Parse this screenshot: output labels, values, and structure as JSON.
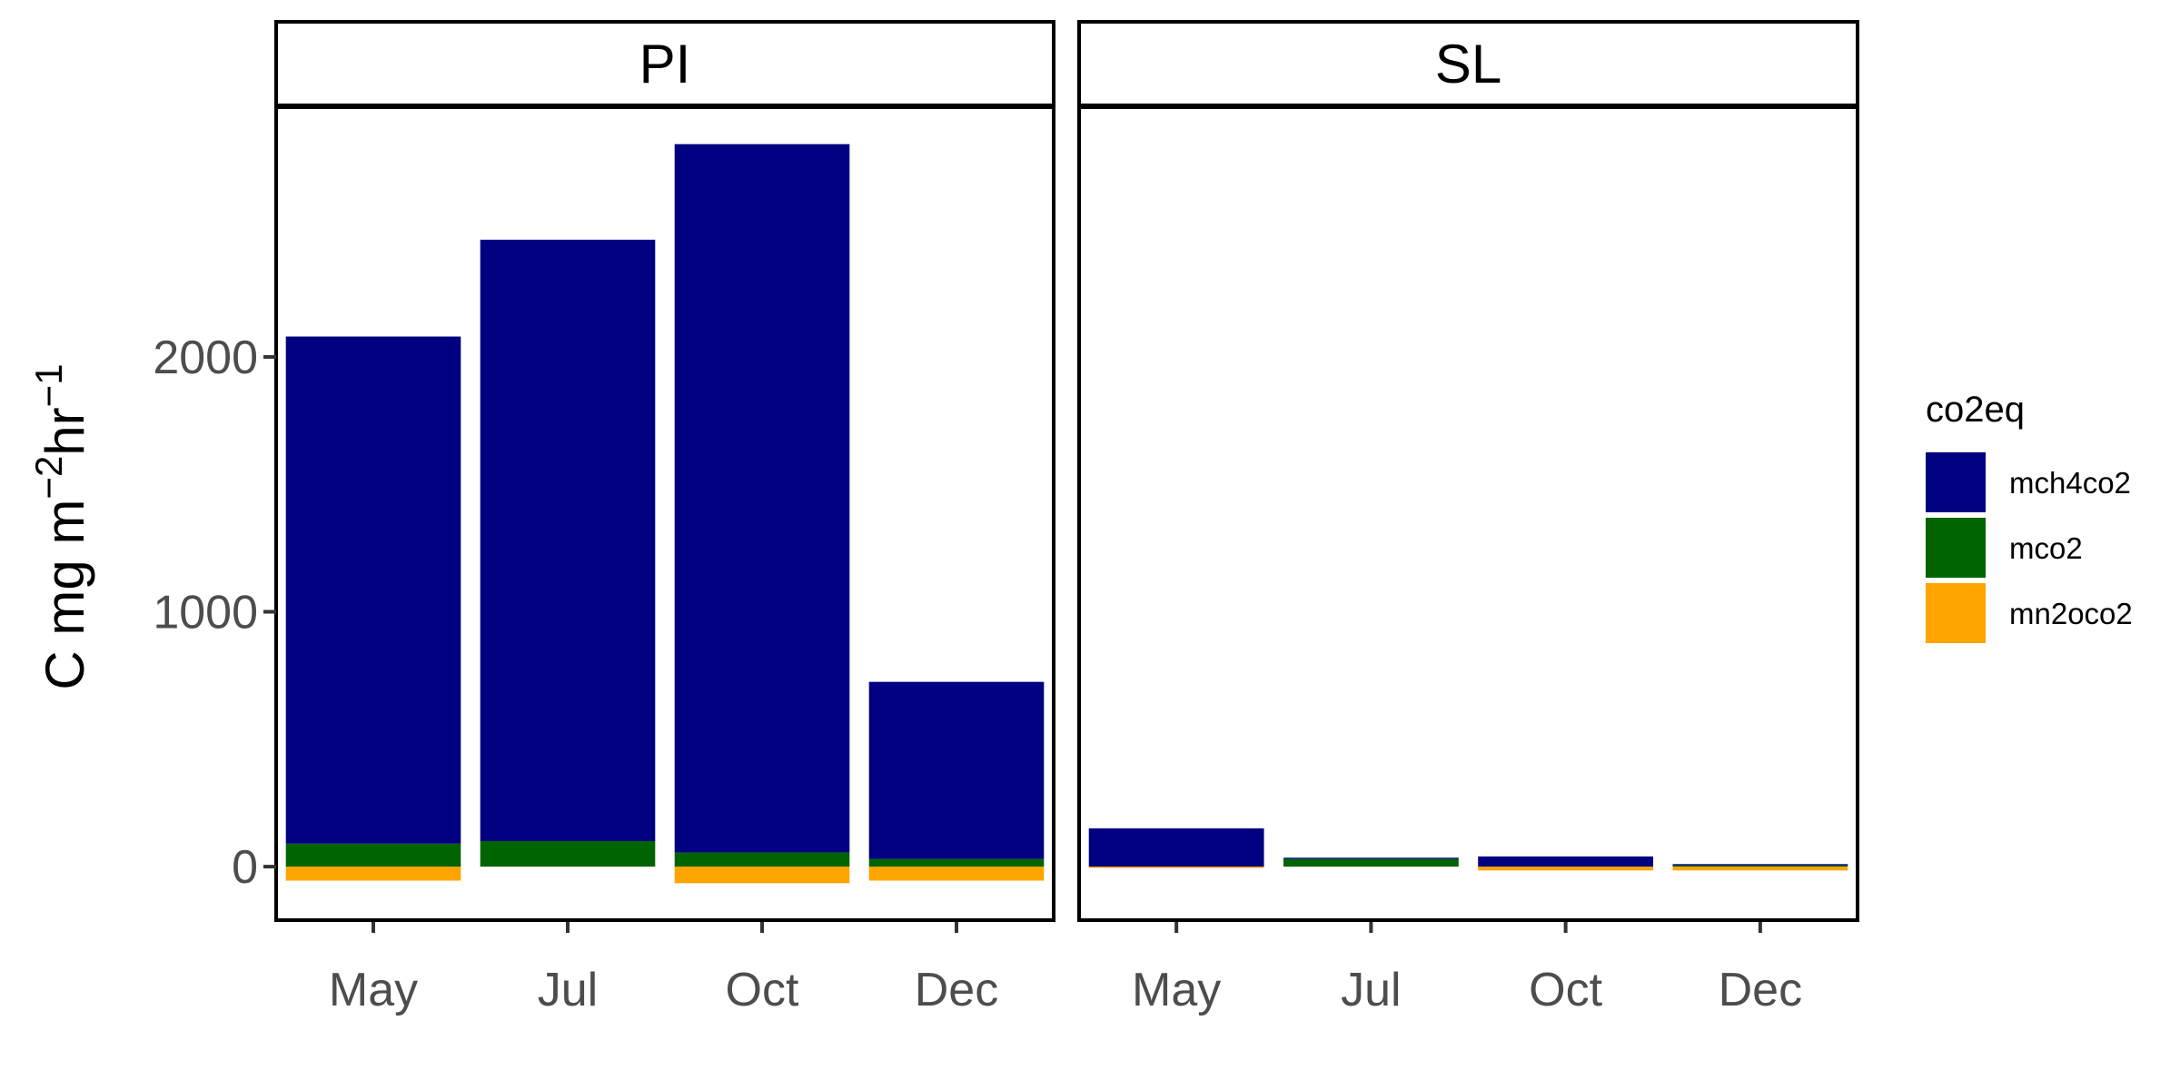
{
  "chart_data": {
    "type": "bar",
    "stacked": true,
    "facets": [
      "PI",
      "SL"
    ],
    "categories": [
      "May",
      "Jul",
      "Oct",
      "Dec"
    ],
    "ylabel": "C mg m^-2 hr^-1",
    "ylabel_parts": {
      "base": "C mg m",
      "exp1": "−2",
      "mid": "hr",
      "exp2": "−1"
    },
    "yticks": [
      0,
      1000,
      2000
    ],
    "ylim": [
      -210,
      2980
    ],
    "grid": false,
    "legend": {
      "title": "co2eq",
      "position": "right",
      "entries": [
        {
          "name": "mch4co2",
          "color": "#000080"
        },
        {
          "name": "mco2",
          "color": "#006400"
        },
        {
          "name": "mn2oco2",
          "color": "#FFA500"
        }
      ]
    },
    "series": [
      {
        "name": "mch4co2",
        "color": "#000080",
        "values_by_facet": {
          "PI": [
            1990,
            2360,
            2780,
            695
          ],
          "SL": [
            150,
            5,
            40,
            5
          ]
        }
      },
      {
        "name": "mco2",
        "color": "#006400",
        "values_by_facet": {
          "PI": [
            90,
            100,
            55,
            30
          ],
          "SL": [
            0,
            30,
            0,
            5
          ]
        }
      },
      {
        "name": "mn2oco2",
        "color": "#FFA500",
        "values_by_facet": {
          "PI": [
            -55,
            0,
            -65,
            -55
          ],
          "SL": [
            -5,
            0,
            -15,
            -15
          ]
        }
      }
    ]
  }
}
